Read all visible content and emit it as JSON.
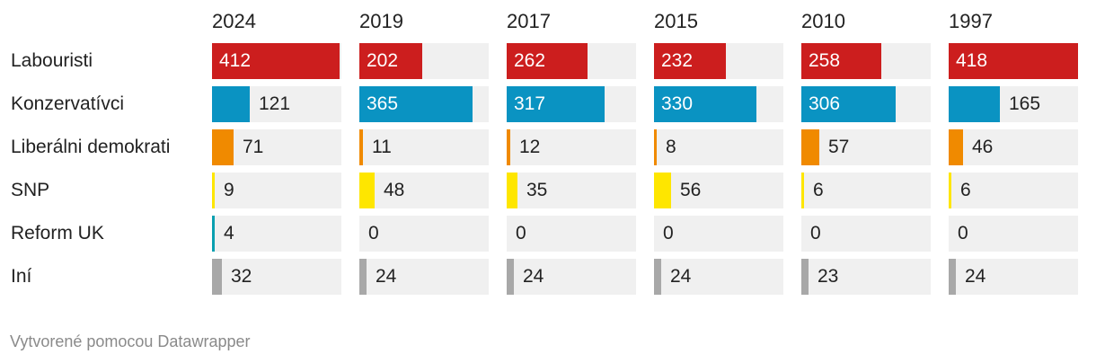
{
  "chart_data": {
    "type": "table",
    "columns": [
      "2024",
      "2019",
      "2017",
      "2015",
      "2010",
      "1997"
    ],
    "max_value": 418,
    "rows": [
      {
        "label": "Labouristi",
        "color": "#cc1e1e",
        "values": [
          412,
          202,
          262,
          232,
          258,
          418
        ]
      },
      {
        "label": "Konzervatívci",
        "color": "#0a93c2",
        "values": [
          121,
          365,
          317,
          330,
          306,
          165
        ]
      },
      {
        "label": "Liberálni demokrati",
        "color": "#f08a00",
        "values": [
          71,
          11,
          12,
          8,
          57,
          46
        ]
      },
      {
        "label": "SNP",
        "color": "#fee600",
        "values": [
          9,
          48,
          35,
          56,
          6,
          6
        ]
      },
      {
        "label": "Reform UK",
        "color": "#0aa0b0",
        "values": [
          4,
          0,
          0,
          0,
          0,
          0
        ]
      },
      {
        "label": "Iní",
        "color": "#a8a8a8",
        "values": [
          32,
          24,
          24,
          24,
          23,
          24
        ]
      }
    ]
  },
  "footer": "Vytvorené pomocou Datawrapper"
}
